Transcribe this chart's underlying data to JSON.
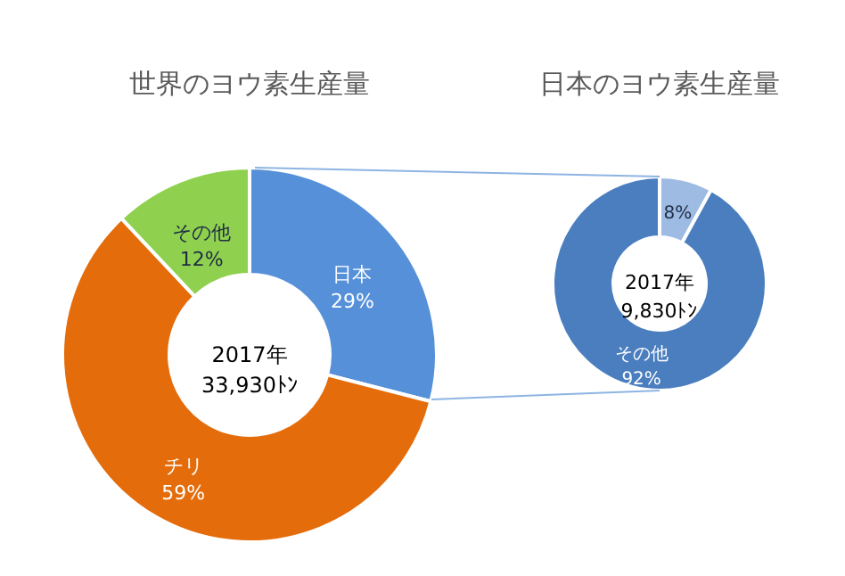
{
  "chart_data": [
    {
      "type": "donut",
      "title": "世界のヨウ素生産量",
      "categories": [
        "日本",
        "チリ",
        "その他"
      ],
      "values": [
        29,
        59,
        12
      ],
      "colors": [
        "#5590d9",
        "#e46c0a",
        "#8fd14f"
      ],
      "value_labels": [
        "29%",
        "59%",
        "12%"
      ],
      "annotations": [
        "2017年",
        "33,930ﾄﾝ"
      ]
    },
    {
      "type": "donut",
      "title": "日本のヨウ素生産量",
      "categories": [
        null,
        "その他"
      ],
      "values": [
        8,
        92
      ],
      "colors": [
        "#9dbbe3",
        "#4a7ebf"
      ],
      "value_labels": [
        "8%",
        "92%"
      ],
      "annotations": [
        "2017年",
        "9,830ﾄﾝ"
      ]
    }
  ]
}
